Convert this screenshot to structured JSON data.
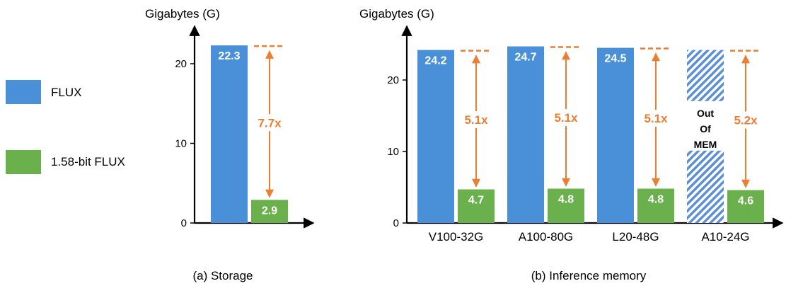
{
  "colors": {
    "flux": "#4a90d9",
    "flux158": "#6ab04c",
    "ratio": "#ed7d31",
    "axis": "#000000"
  },
  "legend": [
    {
      "name": "FLUX",
      "color": "#4a90d9"
    },
    {
      "name": "1.58-bit FLUX",
      "color": "#6ab04c"
    }
  ],
  "chart_data": [
    {
      "type": "bar",
      "title": "(a) Storage",
      "ylabel": "Gigabytes (G)",
      "ylim": [
        0,
        25
      ],
      "yticks": [
        0,
        10,
        20
      ],
      "categories": [
        ""
      ],
      "series": [
        {
          "name": "FLUX",
          "values": [
            22.3
          ],
          "labels": [
            "22.3"
          ]
        },
        {
          "name": "1.58-bit FLUX",
          "values": [
            2.9
          ],
          "labels": [
            "2.9"
          ]
        }
      ],
      "ratios": [
        "7.7x"
      ]
    },
    {
      "type": "bar",
      "title": "(b) Inference memory",
      "ylabel": "Gigabytes (G)",
      "ylim": [
        0,
        28
      ],
      "yticks": [
        0,
        10,
        20
      ],
      "categories": [
        "V100-32G",
        "A100-80G",
        "L20-48G",
        "A10-24G"
      ],
      "series": [
        {
          "name": "FLUX",
          "values": [
            24.2,
            24.7,
            24.5,
            24.2
          ],
          "labels": [
            "24.2",
            "24.7",
            "24.5",
            ""
          ]
        },
        {
          "name": "1.58-bit FLUX",
          "values": [
            4.7,
            4.8,
            4.8,
            4.6
          ],
          "labels": [
            "4.7",
            "4.8",
            "4.8",
            "4.6"
          ]
        }
      ],
      "ratios": [
        "5.1x",
        "5.1x",
        "5.1x",
        "5.2x"
      ],
      "out_of_memory": {
        "category_index": 3,
        "lines": [
          "Out",
          "Of",
          "MEM"
        ]
      }
    }
  ]
}
